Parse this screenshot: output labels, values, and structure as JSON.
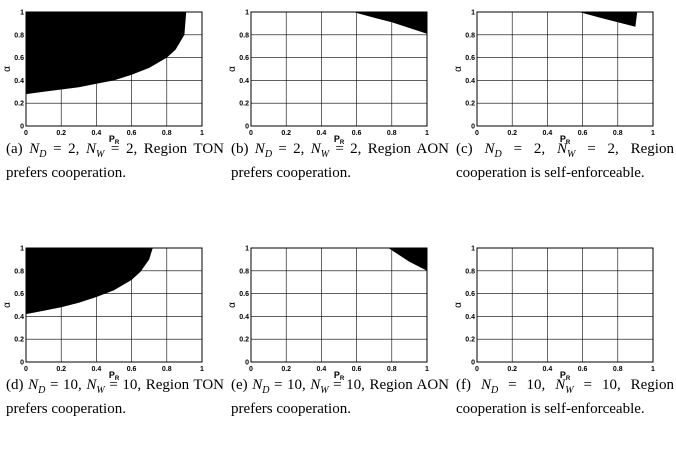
{
  "chart_data": [
    {
      "type": "area",
      "label": "(a)",
      "caption": "N_D = 2, N_W = 2, Region TON prefers cooperation.",
      "caption_parts": {
        "nd": "2",
        "nw": "2",
        "rest": "Region TON prefers cooperation."
      },
      "xlabel": "P_R",
      "ylabel": "α",
      "xlim": [
        0,
        1
      ],
      "ylim": [
        0,
        1
      ],
      "xticks": [
        "0",
        "0.2",
        "0.4",
        "0.6",
        "0.8",
        "1"
      ],
      "yticks": [
        "0",
        "0.2",
        "0.4",
        "0.6",
        "0.8",
        "1"
      ],
      "grid": true,
      "region": {
        "x": [
          0,
          0.1,
          0.2,
          0.3,
          0.4,
          0.5,
          0.6,
          0.7,
          0.8,
          0.85,
          0.9,
          0.91
        ],
        "y_lower": [
          0.28,
          0.3,
          0.32,
          0.34,
          0.37,
          0.4,
          0.45,
          0.51,
          0.6,
          0.67,
          0.8,
          1.0
        ],
        "y_upper": 1.0
      }
    },
    {
      "type": "area",
      "label": "(b)",
      "caption": "N_D = 2, N_W = 2, Region AON prefers cooperation.",
      "caption_parts": {
        "nd": "2",
        "nw": "2",
        "rest": "Region AON prefers cooperation."
      },
      "xlabel": "P_R",
      "ylabel": "α",
      "xlim": [
        0,
        1
      ],
      "ylim": [
        0,
        1
      ],
      "xticks": [
        "0",
        "0.2",
        "0.4",
        "0.6",
        "0.8",
        "1"
      ],
      "yticks": [
        "0",
        "0.2",
        "0.4",
        "0.6",
        "0.8",
        "1"
      ],
      "grid": true,
      "region": {
        "x": [
          0.58,
          0.7,
          0.8,
          0.9,
          1.0
        ],
        "y_lower": [
          1.0,
          0.95,
          0.91,
          0.86,
          0.81
        ],
        "y_upper": 1.0
      }
    },
    {
      "type": "area",
      "label": "(c)",
      "caption": "N_D = 2, N_W = 2, Region cooperation is self-enforceable.",
      "caption_parts": {
        "nd": "2",
        "nw": "2",
        "rest": "Region cooperation is self-enforceable."
      },
      "xlabel": "P_R",
      "ylabel": "α",
      "xlim": [
        0,
        1
      ],
      "ylim": [
        0,
        1
      ],
      "xticks": [
        "0",
        "0.2",
        "0.4",
        "0.6",
        "0.8",
        "1"
      ],
      "yticks": [
        "0",
        "0.2",
        "0.4",
        "0.6",
        "0.8",
        "1"
      ],
      "grid": true,
      "region": {
        "x": [
          0.58,
          0.7,
          0.8,
          0.9,
          0.91
        ],
        "y_lower": [
          1.0,
          0.95,
          0.91,
          0.87,
          1.0
        ],
        "y_upper": 1.0
      }
    },
    {
      "type": "area",
      "label": "(d)",
      "caption": "N_D = 10, N_W = 10, Region TON prefers cooperation.",
      "caption_parts": {
        "nd": "10",
        "nw": "10",
        "rest": "Region TON prefers cooperation."
      },
      "xlabel": "P_R",
      "ylabel": "α",
      "xlim": [
        0,
        1
      ],
      "ylim": [
        0,
        1
      ],
      "xticks": [
        "0",
        "0.2",
        "0.4",
        "0.6",
        "0.8",
        "1"
      ],
      "yticks": [
        "0",
        "0.2",
        "0.4",
        "0.6",
        "0.8",
        "1"
      ],
      "grid": true,
      "region": {
        "x": [
          0,
          0.1,
          0.2,
          0.3,
          0.4,
          0.5,
          0.6,
          0.65,
          0.7,
          0.72
        ],
        "y_lower": [
          0.42,
          0.45,
          0.48,
          0.52,
          0.57,
          0.63,
          0.72,
          0.79,
          0.9,
          1.0
        ],
        "y_upper": 1.0
      }
    },
    {
      "type": "area",
      "label": "(e)",
      "caption": "N_D = 10, N_W = 10, Region AON prefers cooperation.",
      "caption_parts": {
        "nd": "10",
        "nw": "10",
        "rest": "Region AON prefers cooperation."
      },
      "xlabel": "P_R",
      "ylabel": "α",
      "xlim": [
        0,
        1
      ],
      "ylim": [
        0,
        1
      ],
      "xticks": [
        "0",
        "0.2",
        "0.4",
        "0.6",
        "0.8",
        "1"
      ],
      "yticks": [
        "0",
        "0.2",
        "0.4",
        "0.6",
        "0.8",
        "1"
      ],
      "grid": true,
      "region": {
        "x": [
          0.78,
          0.85,
          0.9,
          0.95,
          1.0
        ],
        "y_lower": [
          1.0,
          0.93,
          0.88,
          0.84,
          0.8
        ],
        "y_upper": 1.0
      }
    },
    {
      "type": "area",
      "label": "(f)",
      "caption": "N_D = 10, N_W = 10, Region cooperation is self-enforceable.",
      "caption_parts": {
        "nd": "10",
        "nw": "10",
        "rest": "Region cooperation is self-enforceable."
      },
      "xlabel": "P_R",
      "ylabel": "α",
      "xlim": [
        0,
        1
      ],
      "ylim": [
        0,
        1
      ],
      "xticks": [
        "0",
        "0.2",
        "0.4",
        "0.6",
        "0.8",
        "1"
      ],
      "yticks": [
        "0",
        "0.2",
        "0.4",
        "0.6",
        "0.8",
        "1"
      ],
      "grid": true,
      "region": null
    }
  ],
  "colors": {
    "region_fill": "#000000",
    "grid": "#000000",
    "background": "#ffffff"
  }
}
